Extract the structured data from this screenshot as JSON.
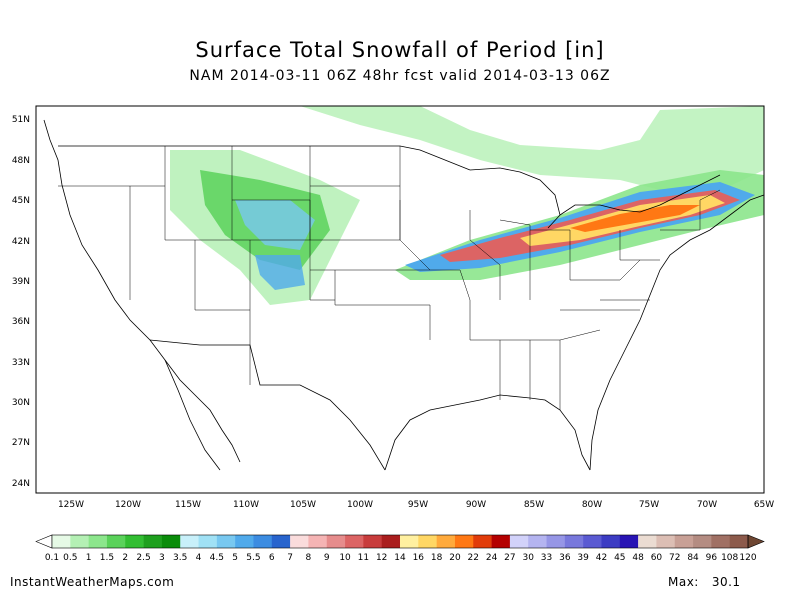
{
  "header": {
    "title": "Surface Total Snowfall of Period [in]",
    "subtitle": "NAM 2014-03-11 06Z 48hr fcst valid 2014-03-13 06Z"
  },
  "map": {
    "lat_labels": [
      "51N",
      "48N",
      "45N",
      "42N",
      "39N",
      "36N",
      "33N",
      "30N",
      "27N",
      "24N"
    ],
    "lon_labels": [
      "125W",
      "120W",
      "115W",
      "110W",
      "105W",
      "100W",
      "95W",
      "90W",
      "85W",
      "80W",
      "75W",
      "70W",
      "65W"
    ]
  },
  "colorbar": {
    "labels": [
      "0.1",
      "0.5",
      "1",
      "1.5",
      "2",
      "2.5",
      "3",
      "3.5",
      "4",
      "4.5",
      "5",
      "5.5",
      "6",
      "7",
      "8",
      "9",
      "10",
      "11",
      "12",
      "14",
      "16",
      "18",
      "20",
      "22",
      "24",
      "27",
      "30",
      "33",
      "36",
      "39",
      "42",
      "45",
      "48",
      "60",
      "72",
      "84",
      "96",
      "108",
      "120"
    ],
    "colors": [
      "#e6fae6",
      "#b4f0b4",
      "#8ce68c",
      "#5ad25a",
      "#32be32",
      "#1ea01e",
      "#0a8c0a",
      "#c8f0fa",
      "#a0e1f5",
      "#78c8f0",
      "#50aaeb",
      "#3c8ce1",
      "#2864cd",
      "#fadcdc",
      "#f5b4b4",
      "#e68c8c",
      "#dc6464",
      "#c83c3c",
      "#aa1e1e",
      "#fff0a0",
      "#ffd764",
      "#ffaa3c",
      "#ff7814",
      "#e13c0a",
      "#b40000",
      "#d2d2fa",
      "#b4b4f0",
      "#9696e6",
      "#7878dc",
      "#5a5ad2",
      "#3c3cc3",
      "#2814b4",
      "#ebdcd2",
      "#dcbeb4",
      "#c8a096",
      "#b48c82",
      "#a07064",
      "#8c5a4b"
    ]
  },
  "footer": {
    "source": "InstantWeatherMaps.com",
    "max_label": "Max:",
    "max_value": "30.1"
  }
}
